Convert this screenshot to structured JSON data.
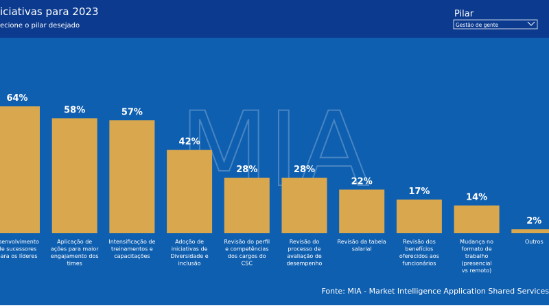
{
  "header": {
    "title": "iciativas para 2023",
    "subtitle": "ecione o pilar desejado",
    "filter_label": "Pilar",
    "filter_value": "Gestão de gente"
  },
  "watermark": "MIA",
  "chart_data": {
    "type": "bar",
    "categories": [
      [
        "esenvolvimento",
        "de sucessores",
        "para os líderes"
      ],
      [
        "Aplicação de",
        "ações para maior",
        "engajamento dos",
        "times"
      ],
      [
        "Intensificação de",
        "treinamentos e",
        "capacitações"
      ],
      [
        "Adoção de",
        "iniciativas de",
        "Diversidade e",
        "inclusão"
      ],
      [
        "Revisão do perfil",
        "e competências",
        "dos cargos do",
        "CSC"
      ],
      [
        "Revisão do",
        "processo de",
        "avaliação de",
        "desempenho"
      ],
      [
        "Revisão da tabela",
        "salarial"
      ],
      [
        "Revisão dos",
        "benefícios",
        "oferecidos aos",
        "funcionários"
      ],
      [
        "Mudança no",
        "formato de",
        "trabalho",
        "(presencial",
        "vs remoto)"
      ],
      [
        "Outros"
      ]
    ],
    "values": [
      64,
      58,
      57,
      42,
      28,
      28,
      22,
      17,
      14,
      2
    ],
    "value_labels": [
      "64%",
      "58%",
      "57%",
      "42%",
      "28%",
      "28%",
      "22%",
      "17%",
      "14%",
      "2%"
    ],
    "color": "#d9a84e",
    "source": "Fonte: MIA - Market Intelligence Application Shared Services"
  }
}
